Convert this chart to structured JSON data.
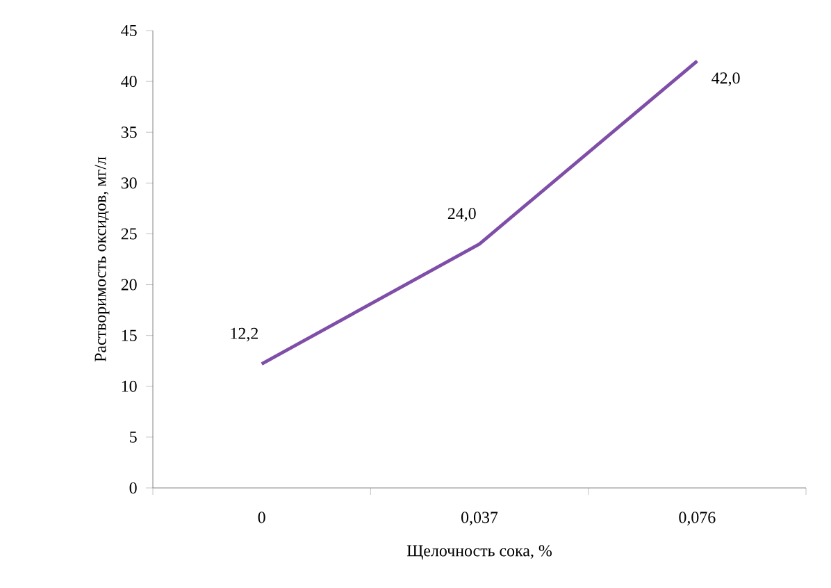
{
  "chart_data": {
    "type": "line",
    "xlabel": "Щелочность сока, %",
    "ylabel": "Растворимость оксидов, мг/л",
    "categories": [
      "0",
      "0,037",
      "0,076"
    ],
    "series": [
      {
        "color": "#7f4ea8",
        "values": [
          12.2,
          24.0,
          42.0
        ],
        "value_labels": [
          "12,2",
          "24,0",
          "42,0"
        ]
      }
    ],
    "ylim": [
      0,
      45
    ],
    "yticks": [
      0,
      5,
      10,
      15,
      20,
      25,
      30,
      35,
      40,
      45
    ],
    "marker": "none",
    "line_style": "solid"
  }
}
